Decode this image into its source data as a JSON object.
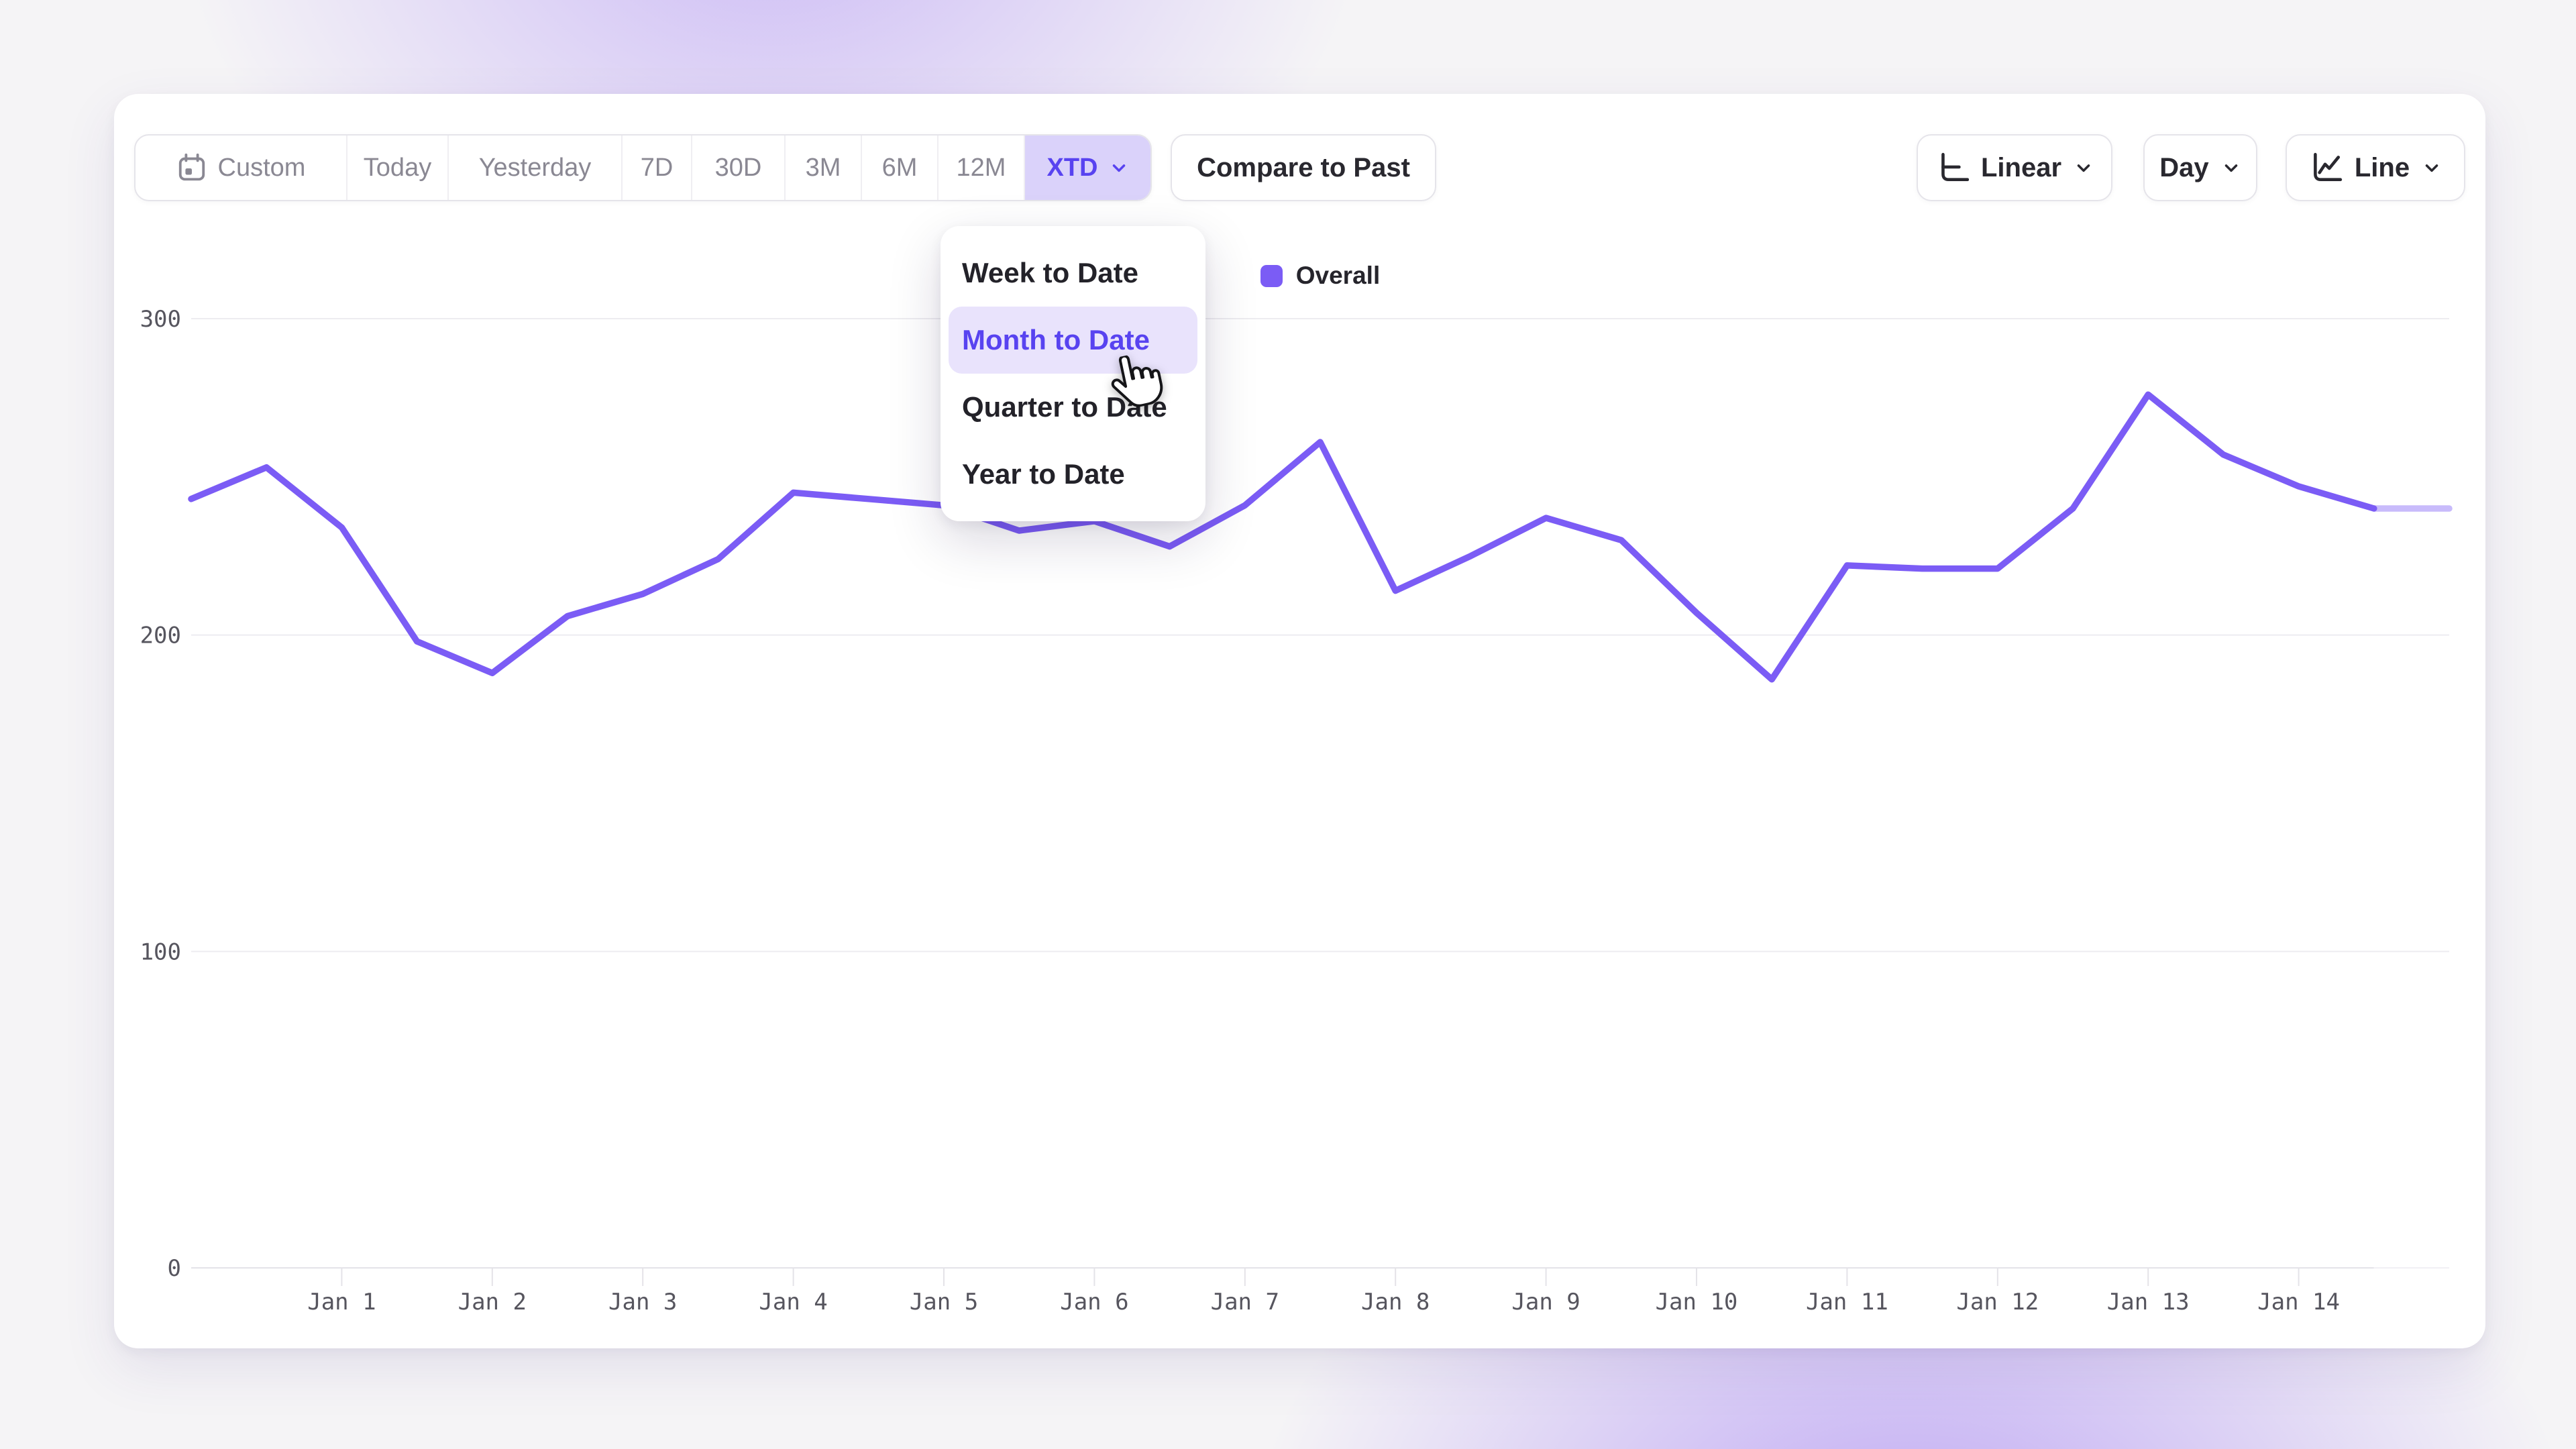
{
  "toolbar": {
    "range_custom": "Custom",
    "range_today": "Today",
    "range_yesterday": "Yesterday",
    "range_7d": "7D",
    "range_30d": "30D",
    "range_3m": "3M",
    "range_6m": "6M",
    "range_12m": "12M",
    "range_xtd": "XTD",
    "compare": "Compare to Past",
    "scale": "Linear",
    "granularity": "Day",
    "chart_type": "Line"
  },
  "dropdown": {
    "week": "Week to Date",
    "month": "Month to Date",
    "quarter": "Quarter to Date",
    "year": "Year to Date",
    "active_item": "Month to Date"
  },
  "legend": {
    "label": "Overall"
  },
  "colors": {
    "accent": "#5843F0",
    "line": "#7B5CF5",
    "selected_chip_bg": "#DAD2FA",
    "active_item_bg": "#E9E3FC",
    "grid": "#EDECF0",
    "axis_text": "#56555E"
  },
  "chart_data": {
    "type": "line",
    "title": "",
    "series": [
      {
        "name": "Overall",
        "color": "#7B5CF5",
        "x_start": "Dec 31",
        "x_step_days": 0.5,
        "values": [
          243,
          253,
          234,
          198,
          188,
          206,
          213,
          224,
          245,
          243,
          241,
          233,
          236,
          228,
          241,
          261,
          214,
          225,
          237,
          230,
          207,
          186,
          222,
          221,
          221,
          240,
          276,
          257,
          247,
          240,
          240
        ],
        "solid_until_index": 29
      }
    ],
    "x_tick_labels": [
      "Jan 1",
      "Jan 2",
      "Jan 3",
      "Jan 4",
      "Jan 5",
      "Jan 6",
      "Jan 7",
      "Jan 8",
      "Jan 9",
      "Jan 10",
      "Jan 11",
      "Jan 12",
      "Jan 13",
      "Jan 14"
    ],
    "x_tick_point_indices": [
      2,
      4,
      6,
      8,
      10,
      12,
      14,
      16,
      18,
      20,
      22,
      24,
      26,
      28
    ],
    "y_ticks": [
      0,
      100,
      200,
      300
    ],
    "ylim": [
      0,
      300
    ],
    "grid": "horizontal",
    "legend_position": "top-center"
  }
}
